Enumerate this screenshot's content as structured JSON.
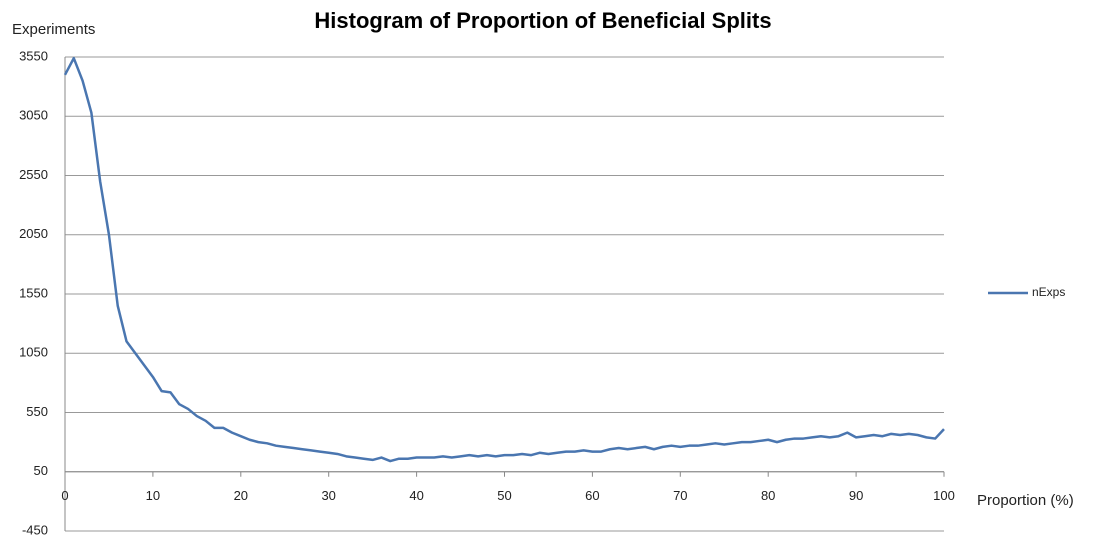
{
  "chart_data": {
    "type": "line",
    "title": "Histogram of Proportion of Beneficial Splits",
    "y_label": "Experiments",
    "x_label": "Proportion (%)",
    "x": [
      0,
      1,
      2,
      3,
      4,
      5,
      6,
      7,
      8,
      9,
      10,
      11,
      12,
      13,
      14,
      15,
      16,
      17,
      18,
      19,
      20,
      21,
      22,
      23,
      24,
      25,
      26,
      27,
      28,
      29,
      30,
      31,
      32,
      33,
      34,
      35,
      36,
      37,
      38,
      39,
      40,
      41,
      42,
      43,
      44,
      45,
      46,
      47,
      48,
      49,
      50,
      51,
      52,
      53,
      54,
      55,
      56,
      57,
      58,
      59,
      60,
      61,
      62,
      63,
      64,
      65,
      66,
      67,
      68,
      69,
      70,
      71,
      72,
      73,
      74,
      75,
      76,
      77,
      78,
      79,
      80,
      81,
      82,
      83,
      84,
      85,
      86,
      87,
      88,
      89,
      90,
      91,
      92,
      93,
      94,
      95,
      96,
      97,
      98,
      99,
      100
    ],
    "series": [
      {
        "name": "nExps",
        "color": "#4a76b0",
        "values": [
          3400,
          3540,
          3350,
          3080,
          2500,
          2050,
          1450,
          1150,
          1050,
          950,
          850,
          730,
          720,
          620,
          580,
          520,
          480,
          420,
          420,
          380,
          350,
          320,
          300,
          290,
          270,
          260,
          250,
          240,
          230,
          220,
          210,
          200,
          180,
          170,
          160,
          150,
          170,
          140,
          160,
          160,
          170,
          170,
          170,
          180,
          170,
          180,
          190,
          180,
          190,
          180,
          190,
          190,
          200,
          190,
          210,
          200,
          210,
          220,
          220,
          230,
          220,
          220,
          240,
          250,
          240,
          250,
          260,
          240,
          260,
          270,
          260,
          270,
          270,
          280,
          290,
          280,
          290,
          300,
          300,
          310,
          320,
          300,
          320,
          330,
          330,
          340,
          350,
          340,
          350,
          380,
          340,
          350,
          360,
          350,
          370,
          360,
          370,
          360,
          340,
          330,
          410
        ]
      }
    ],
    "xlim": [
      0,
      100
    ],
    "xticks": [
      0,
      10,
      20,
      30,
      40,
      50,
      60,
      70,
      80,
      90,
      100
    ],
    "ylim": [
      -450,
      3550
    ],
    "yticks": [
      -450,
      50,
      550,
      1050,
      1550,
      2050,
      2550,
      3050,
      3550
    ],
    "grid": true,
    "legend": "right"
  }
}
